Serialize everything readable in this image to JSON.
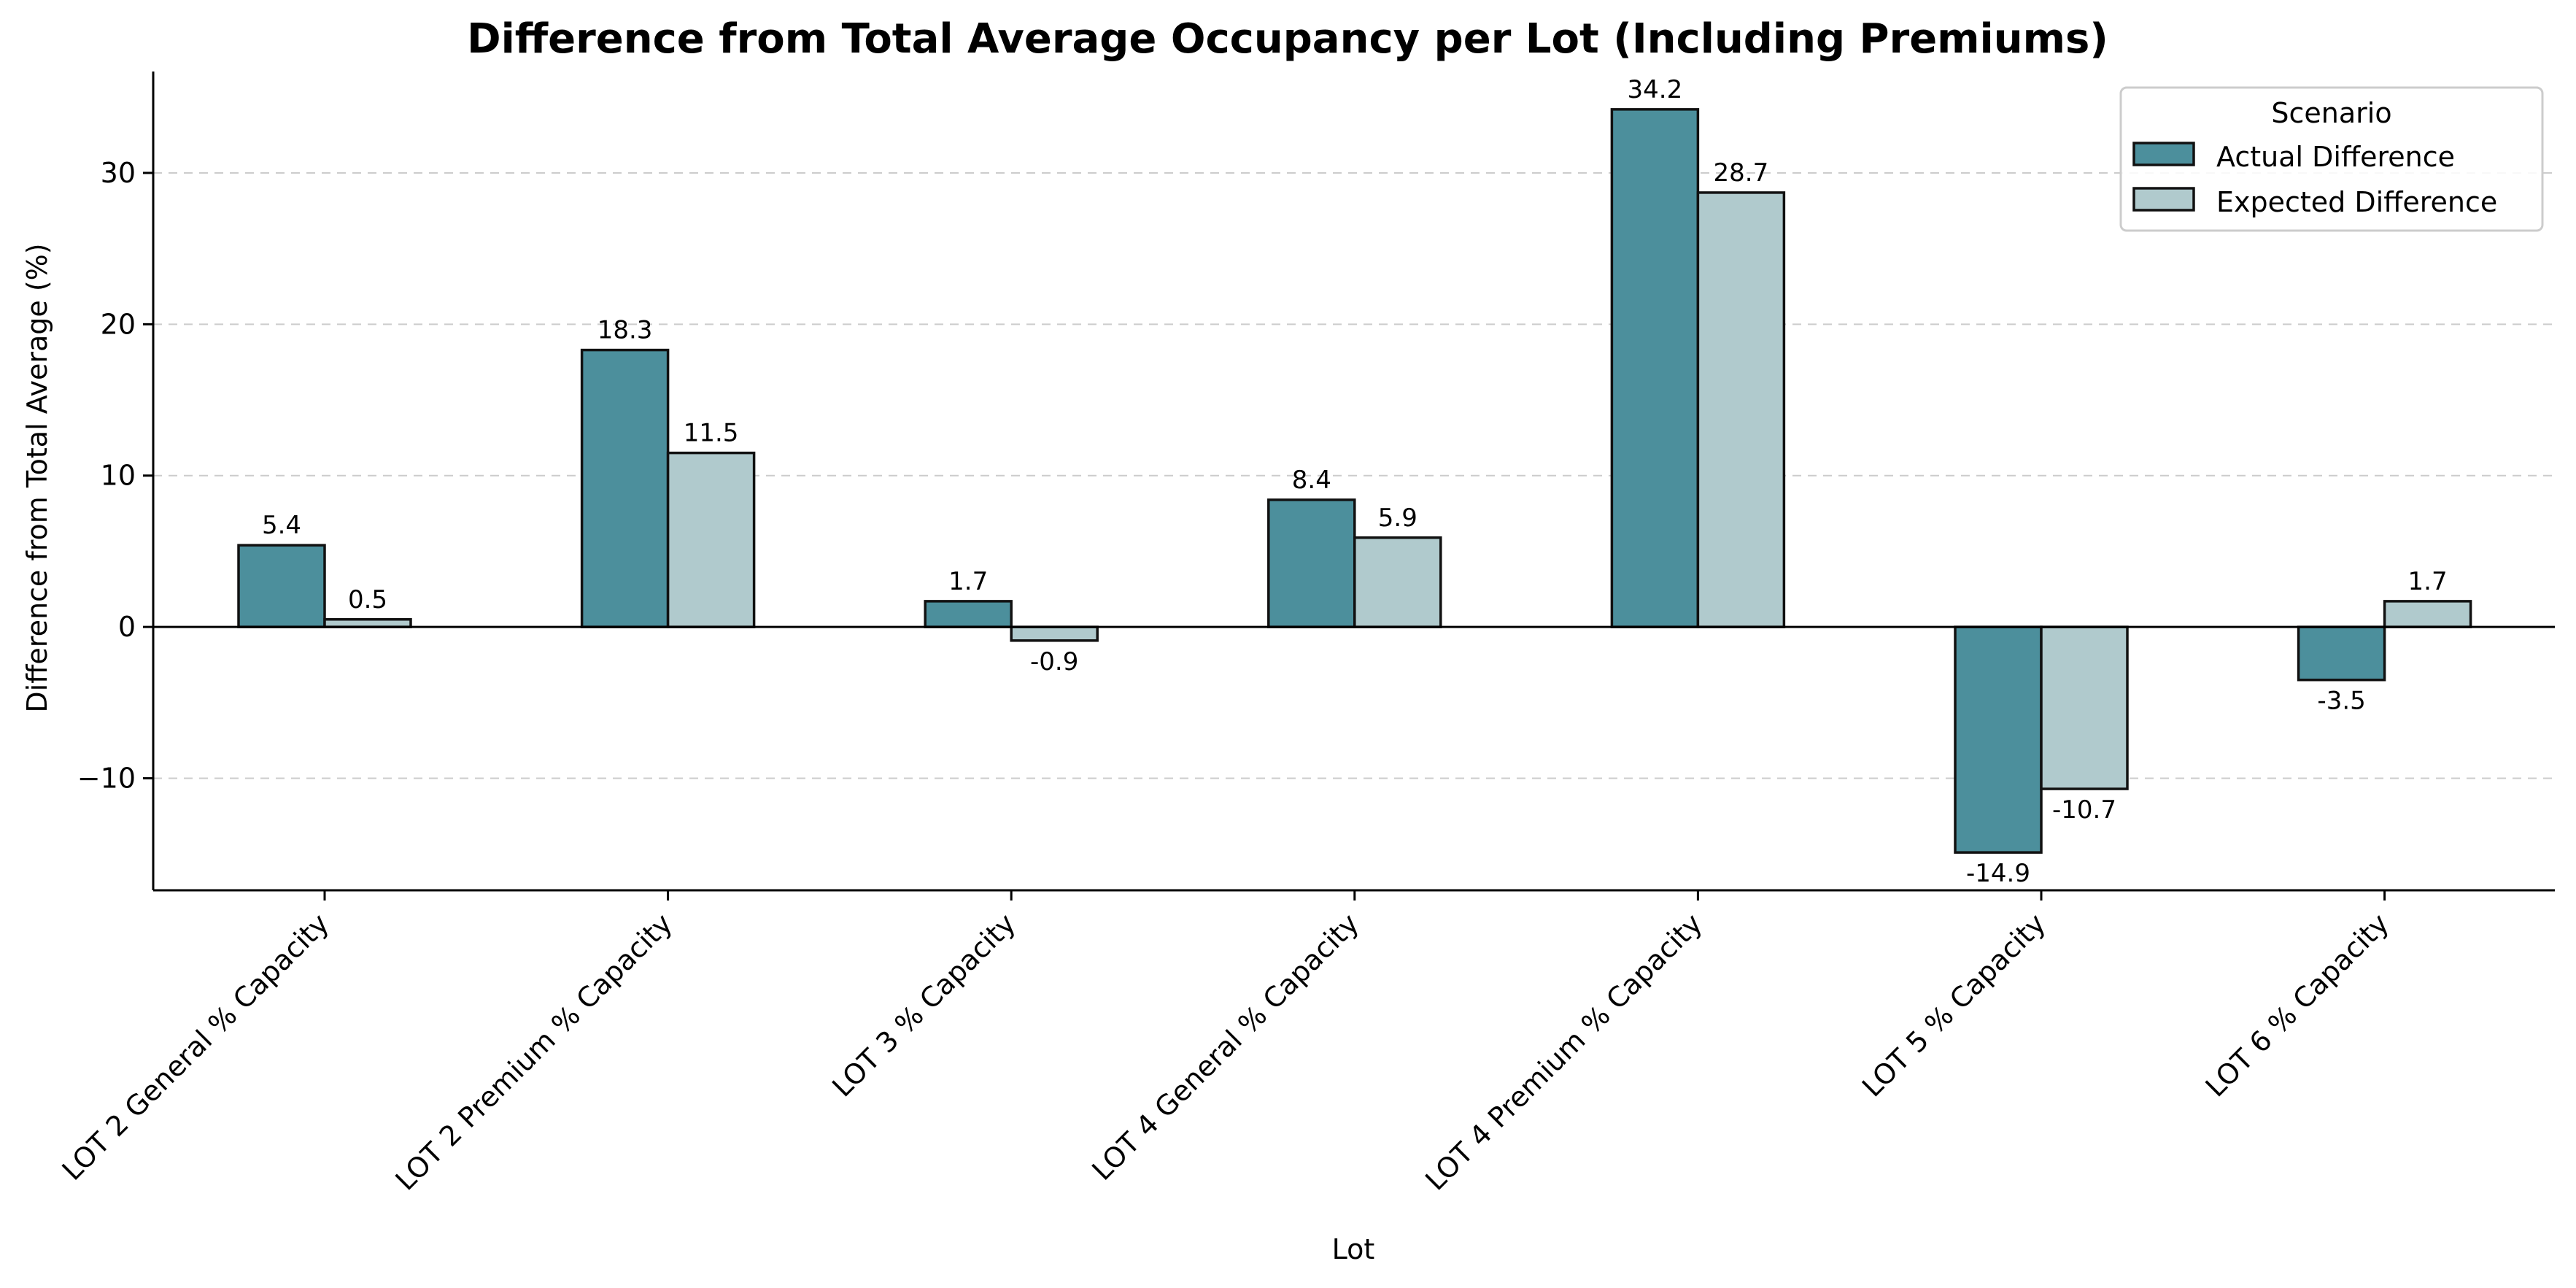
{
  "chart_data": {
    "type": "bar",
    "title": "Difference from Total Average Occupancy per Lot (Including Premiums)",
    "xlabel": "Lot",
    "ylabel": "Difference from Total Average (%)",
    "categories": [
      "LOT 2 General % Capacity",
      "LOT 2 Premium % Capacity",
      "LOT 3 % Capacity",
      "LOT 4 General % Capacity",
      "LOT 4 Premium % Capacity",
      "LOT 5 % Capacity",
      "LOT 6 % Capacity"
    ],
    "series": [
      {
        "name": "Actual Difference",
        "values": [
          5.4,
          18.3,
          1.7,
          8.4,
          34.2,
          -14.9,
          -3.5
        ],
        "color": "#4c8f9c"
      },
      {
        "name": "Expected Difference",
        "values": [
          0.5,
          11.5,
          -0.9,
          5.9,
          28.7,
          -10.7,
          1.7
        ],
        "color": "#b0cacd"
      }
    ],
    "ylim": [
      -17.4,
      36.7
    ],
    "yticks": [
      -10,
      0,
      10,
      20,
      30
    ],
    "grid": "y-dashed",
    "legend": {
      "title": "Scenario",
      "placement": "top-right"
    }
  }
}
